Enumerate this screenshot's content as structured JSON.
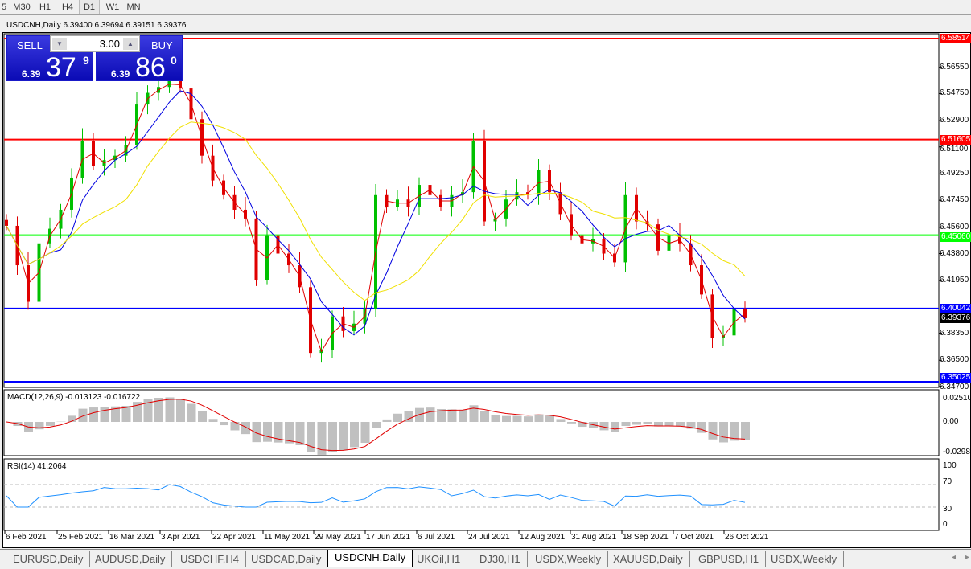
{
  "timeframes": [
    "5",
    "M30",
    "H1",
    "H4",
    "D1",
    "W1",
    "MN"
  ],
  "active_timeframe": "D1",
  "chart": {
    "title": "USDCNH,Daily  6.39400 6.39694 6.39151 6.39376"
  },
  "trade_panel": {
    "sell_label": "SELL",
    "buy_label": "BUY",
    "lot": "3.00",
    "sell_prefix": "6.39",
    "sell_big": "37",
    "sell_sup": "9",
    "buy_prefix": "6.39",
    "buy_big": "86",
    "buy_sup": "0"
  },
  "colors": {
    "bull": "#00c000",
    "bear": "#e00000",
    "ma_fast": "#e00000",
    "ma_mid": "#0000e0",
    "ma_slow": "#f0e000"
  },
  "chart_data": {
    "type": "candlestick",
    "price_axis_ticks": [
      "6.56550",
      "6.54750",
      "6.52900",
      "6.51100",
      "6.49250",
      "6.47450",
      "6.45600",
      "6.43800",
      "6.41950",
      "6.38350",
      "6.36500",
      "6.34700"
    ],
    "ylim": [
      6.347,
      6.592
    ],
    "levels": [
      {
        "price": 6.58514,
        "label": "6.58514",
        "color": "#ff0000"
      },
      {
        "price": 6.51605,
        "label": "6.51605",
        "color": "#ff0000"
      },
      {
        "price": 6.4506,
        "label": "6.45060",
        "color": "#00ff00"
      },
      {
        "price": 6.40042,
        "label": "6.40042",
        "color": "#0000ff"
      },
      {
        "price": 6.35025,
        "label": "6.35025",
        "color": "#0000ff"
      }
    ],
    "current_price": "6.39376",
    "closes": [
      6.457,
      6.43,
      6.405,
      6.445,
      6.455,
      6.468,
      6.49,
      6.515,
      6.498,
      6.502,
      6.505,
      6.512,
      6.54,
      6.548,
      6.552,
      6.556,
      6.551,
      6.53,
      6.505,
      6.488,
      6.478,
      6.468,
      6.462,
      6.42,
      6.45,
      6.438,
      6.43,
      6.415,
      6.37,
      6.372,
      6.395,
      6.385,
      6.39,
      6.4,
      6.478,
      6.47,
      6.475,
      6.47,
      6.485,
      6.478,
      6.47,
      6.478,
      6.48,
      6.515,
      6.46,
      6.462,
      6.475,
      6.48,
      6.478,
      6.495,
      6.48,
      6.465,
      6.45,
      6.445,
      6.448,
      6.438,
      6.432,
      6.478,
      6.46,
      6.458,
      6.44,
      6.45,
      6.445,
      6.43,
      6.41,
      6.38,
      6.382,
      6.4,
      6.39376
    ],
    "dates": [
      "6 Feb 2021",
      "25 Feb 2021",
      "16 Mar 2021",
      "3 Apr 2021",
      "22 Apr 2021",
      "11 May 2021",
      "29 May 2021",
      "17 Jun 2021",
      "6 Jul 2021",
      "24 Jul 2021",
      "12 Aug 2021",
      "31 Aug 2021",
      "18 Sep 2021",
      "7 Oct 2021",
      "26 Oct 2021"
    ],
    "macd": {
      "label": "MACD(12,26,9) -0.013123 -0.016722",
      "ticks": [
        "0.025108",
        "0.00",
        "-0.02988"
      ]
    },
    "rsi": {
      "label": "RSI(14) 41.2064",
      "ticks": [
        "100",
        "70",
        "30",
        "0"
      ]
    }
  },
  "tabs": [
    "EURUSD,Daily",
    "AUDUSD,Daily",
    "USDCHF,H4",
    "USDCAD,Daily",
    "USDCNH,Daily",
    "UKOil,H1",
    "DJ30,H1",
    "USDX,Weekly",
    "XAUUSD,Daily",
    "GBPUSD,H1",
    "USDX,Weekly"
  ],
  "active_tab": "USDCNH,Daily"
}
